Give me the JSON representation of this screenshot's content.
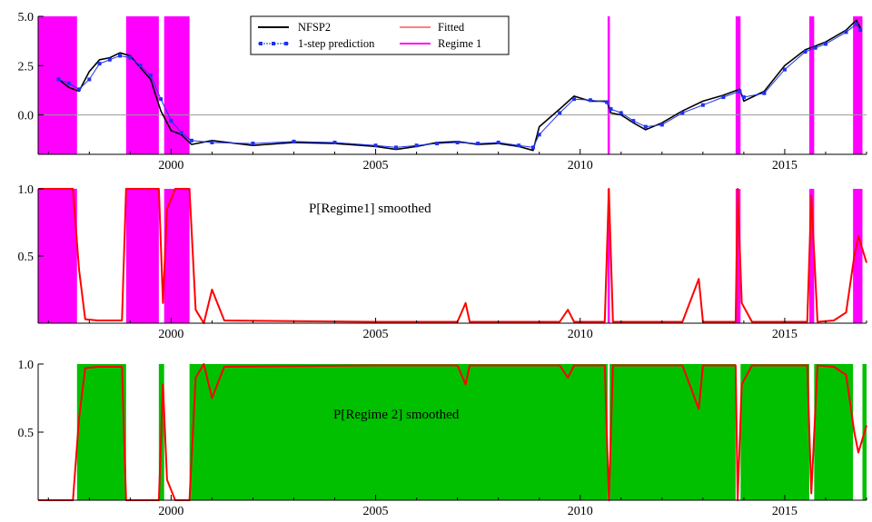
{
  "colors": {
    "actual": "#000000",
    "prediction": "#1e32f0",
    "fitted": "#ff0000",
    "regime1": "#ff00ff",
    "regime2": "#00c000",
    "axis": "#000000",
    "zero_line": "#999999"
  },
  "chart_data": [
    {
      "type": "line",
      "title": "",
      "xlabel": "",
      "ylabel": "",
      "xlim": [
        1996.75,
        2017.0
      ],
      "ylim": [
        -2.0,
        5.0
      ],
      "x_ticks": [
        2000,
        2005,
        2010,
        2015
      ],
      "x_tick_labels": [
        "2000",
        "2005",
        "2010",
        "2015"
      ],
      "y_ticks": [
        0,
        2.5,
        5.0
      ],
      "y_tick_labels": [
        "0.0",
        "2.5",
        "5.0"
      ],
      "zero_line": 0,
      "legend": {
        "placement": "top-center",
        "entries": [
          "NFSP2",
          "1-step prediction",
          "Fitted",
          "Regime 1"
        ]
      },
      "regime1_shading": [
        [
          1996.75,
          1997.7
        ],
        [
          1998.9,
          1999.7
        ],
        [
          1999.83,
          2000.45
        ],
        [
          2010.67,
          2010.72
        ],
        [
          2013.8,
          2013.92
        ],
        [
          2015.6,
          2015.72
        ],
        [
          2016.67,
          2016.9
        ]
      ],
      "series": [
        {
          "name": "NFSP2",
          "style": "line",
          "points": [
            [
              1997.25,
              1.8
            ],
            [
              1997.5,
              1.4
            ],
            [
              1997.75,
              1.2
            ],
            [
              1998.0,
              2.2
            ],
            [
              1998.25,
              2.8
            ],
            [
              1998.5,
              2.9
            ],
            [
              1998.75,
              3.15
            ],
            [
              1999.0,
              3.0
            ],
            [
              1999.25,
              2.4
            ],
            [
              1999.5,
              1.8
            ],
            [
              1999.75,
              0.2
            ],
            [
              2000.0,
              -0.8
            ],
            [
              2000.25,
              -1.0
            ],
            [
              2000.5,
              -1.5
            ],
            [
              2001.0,
              -1.3
            ],
            [
              2002.0,
              -1.55
            ],
            [
              2003.0,
              -1.4
            ],
            [
              2004.0,
              -1.45
            ],
            [
              2005.0,
              -1.6
            ],
            [
              2005.5,
              -1.75
            ],
            [
              2006.0,
              -1.6
            ],
            [
              2006.5,
              -1.4
            ],
            [
              2007.0,
              -1.35
            ],
            [
              2007.5,
              -1.5
            ],
            [
              2008.0,
              -1.45
            ],
            [
              2008.5,
              -1.6
            ],
            [
              2008.85,
              -1.8
            ],
            [
              2009.0,
              -0.6
            ],
            [
              2009.5,
              0.3
            ],
            [
              2009.85,
              0.95
            ],
            [
              2010.25,
              0.7
            ],
            [
              2010.65,
              0.7
            ],
            [
              2010.75,
              0.1
            ],
            [
              2011.0,
              0.0
            ],
            [
              2011.3,
              -0.4
            ],
            [
              2011.6,
              -0.75
            ],
            [
              2012.0,
              -0.4
            ],
            [
              2012.5,
              0.2
            ],
            [
              2013.0,
              0.7
            ],
            [
              2013.5,
              1.0
            ],
            [
              2013.9,
              1.3
            ],
            [
              2014.0,
              0.7
            ],
            [
              2014.5,
              1.2
            ],
            [
              2015.0,
              2.5
            ],
            [
              2015.5,
              3.3
            ],
            [
              2015.75,
              3.5
            ],
            [
              2016.0,
              3.7
            ],
            [
              2016.5,
              4.3
            ],
            [
              2016.75,
              4.8
            ],
            [
              2016.85,
              4.4
            ]
          ]
        },
        {
          "name": "1-step prediction",
          "style": "line-markers",
          "points": [
            [
              1997.25,
              1.8
            ],
            [
              1997.5,
              1.6
            ],
            [
              1997.75,
              1.3
            ],
            [
              1998.0,
              1.8
            ],
            [
              1998.25,
              2.6
            ],
            [
              1998.5,
              2.8
            ],
            [
              1998.75,
              3.0
            ],
            [
              1999.0,
              2.9
            ],
            [
              1999.25,
              2.5
            ],
            [
              1999.5,
              2.0
            ],
            [
              1999.75,
              0.8
            ],
            [
              2000.0,
              -0.3
            ],
            [
              2000.25,
              -0.9
            ],
            [
              2000.5,
              -1.3
            ],
            [
              2001.0,
              -1.4
            ],
            [
              2002.0,
              -1.45
            ],
            [
              2003.0,
              -1.35
            ],
            [
              2004.0,
              -1.4
            ],
            [
              2005.0,
              -1.55
            ],
            [
              2005.5,
              -1.65
            ],
            [
              2006.0,
              -1.55
            ],
            [
              2006.5,
              -1.45
            ],
            [
              2007.0,
              -1.4
            ],
            [
              2007.5,
              -1.45
            ],
            [
              2008.0,
              -1.4
            ],
            [
              2008.5,
              -1.55
            ],
            [
              2008.85,
              -1.65
            ],
            [
              2009.0,
              -1.0
            ],
            [
              2009.5,
              0.1
            ],
            [
              2009.85,
              0.8
            ],
            [
              2010.25,
              0.75
            ],
            [
              2010.65,
              0.65
            ],
            [
              2010.75,
              0.3
            ],
            [
              2011.0,
              0.1
            ],
            [
              2011.3,
              -0.3
            ],
            [
              2011.6,
              -0.6
            ],
            [
              2012.0,
              -0.5
            ],
            [
              2012.5,
              0.1
            ],
            [
              2013.0,
              0.5
            ],
            [
              2013.5,
              0.9
            ],
            [
              2013.9,
              1.2
            ],
            [
              2014.0,
              0.9
            ],
            [
              2014.5,
              1.1
            ],
            [
              2015.0,
              2.3
            ],
            [
              2015.5,
              3.2
            ],
            [
              2015.75,
              3.4
            ],
            [
              2016.0,
              3.6
            ],
            [
              2016.5,
              4.2
            ],
            [
              2016.75,
              4.6
            ],
            [
              2016.85,
              4.3
            ]
          ]
        }
      ]
    },
    {
      "type": "area",
      "title": "P[Regime1] smoothed",
      "xlabel": "",
      "ylabel": "",
      "xlim": [
        1996.75,
        2017.0
      ],
      "ylim": [
        0,
        1.0
      ],
      "x_ticks": [
        2000,
        2005,
        2010,
        2015
      ],
      "x_tick_labels": [
        "2000",
        "2005",
        "2010",
        "2015"
      ],
      "y_ticks": [
        0.5,
        1.0
      ],
      "y_tick_labels": [
        "0.5",
        "1.0"
      ],
      "shading": [
        [
          1996.75,
          1997.7
        ],
        [
          1998.9,
          1999.7
        ],
        [
          1999.83,
          2000.45
        ],
        [
          2010.67,
          2010.72
        ],
        [
          2013.8,
          2013.92
        ],
        [
          2015.6,
          2015.72
        ],
        [
          2016.67,
          2016.9
        ]
      ],
      "series": [
        {
          "name": "",
          "style": "line",
          "points": [
            [
              1996.75,
              1.0
            ],
            [
              1997.6,
              1.0
            ],
            [
              1997.75,
              0.4
            ],
            [
              1997.9,
              0.03
            ],
            [
              1998.2,
              0.02
            ],
            [
              1998.8,
              0.02
            ],
            [
              1998.9,
              1.0
            ],
            [
              1999.7,
              1.0
            ],
            [
              1999.8,
              0.15
            ],
            [
              1999.9,
              0.85
            ],
            [
              2000.1,
              1.0
            ],
            [
              2000.45,
              1.0
            ],
            [
              2000.6,
              0.1
            ],
            [
              2000.8,
              0.0
            ],
            [
              2001.0,
              0.25
            ],
            [
              2001.3,
              0.02
            ],
            [
              2005.0,
              0.01
            ],
            [
              2007.0,
              0.01
            ],
            [
              2007.2,
              0.15
            ],
            [
              2007.3,
              0.01
            ],
            [
              2009.5,
              0.01
            ],
            [
              2009.7,
              0.1
            ],
            [
              2009.85,
              0.01
            ],
            [
              2010.6,
              0.01
            ],
            [
              2010.7,
              1.0
            ],
            [
              2010.8,
              0.01
            ],
            [
              2012.5,
              0.01
            ],
            [
              2012.9,
              0.33
            ],
            [
              2013.0,
              0.01
            ],
            [
              2013.8,
              0.01
            ],
            [
              2013.85,
              1.0
            ],
            [
              2013.95,
              0.15
            ],
            [
              2014.2,
              0.01
            ],
            [
              2015.55,
              0.01
            ],
            [
              2015.65,
              0.95
            ],
            [
              2015.8,
              0.01
            ],
            [
              2016.2,
              0.02
            ],
            [
              2016.5,
              0.08
            ],
            [
              2016.7,
              0.5
            ],
            [
              2016.8,
              0.65
            ],
            [
              2017.0,
              0.45
            ]
          ]
        }
      ]
    },
    {
      "type": "area",
      "title": "P[Regime 2] smoothed",
      "xlabel": "",
      "ylabel": "",
      "xlim": [
        1996.75,
        2017.0
      ],
      "ylim": [
        0,
        1.0
      ],
      "x_ticks": [
        2000,
        2005,
        2010,
        2015
      ],
      "x_tick_labels": [
        "2000",
        "2005",
        "2010",
        "2015"
      ],
      "y_ticks": [
        0.5,
        1.0
      ],
      "y_tick_labels": [
        "0.5",
        "1.0"
      ],
      "shading": [
        [
          1997.7,
          1998.9
        ],
        [
          1999.7,
          1999.83
        ],
        [
          2000.45,
          2010.67
        ],
        [
          2010.72,
          2013.8
        ],
        [
          2013.92,
          2015.6
        ],
        [
          2015.72,
          2016.67
        ],
        [
          2016.9,
          2017.0
        ]
      ],
      "series": [
        {
          "name": "",
          "style": "line",
          "points": [
            [
              1996.75,
              0.0
            ],
            [
              1997.6,
              0.0
            ],
            [
              1997.75,
              0.6
            ],
            [
              1997.9,
              0.97
            ],
            [
              1998.2,
              0.98
            ],
            [
              1998.8,
              0.98
            ],
            [
              1998.9,
              0.0
            ],
            [
              1999.7,
              0.0
            ],
            [
              1999.8,
              0.85
            ],
            [
              1999.9,
              0.15
            ],
            [
              2000.1,
              0.0
            ],
            [
              2000.45,
              0.0
            ],
            [
              2000.6,
              0.9
            ],
            [
              2000.8,
              1.0
            ],
            [
              2001.0,
              0.75
            ],
            [
              2001.3,
              0.98
            ],
            [
              2005.0,
              0.99
            ],
            [
              2007.0,
              0.99
            ],
            [
              2007.2,
              0.85
            ],
            [
              2007.3,
              0.99
            ],
            [
              2009.5,
              0.99
            ],
            [
              2009.7,
              0.9
            ],
            [
              2009.85,
              0.99
            ],
            [
              2010.6,
              0.99
            ],
            [
              2010.7,
              0.0
            ],
            [
              2010.8,
              0.99
            ],
            [
              2012.5,
              0.99
            ],
            [
              2012.9,
              0.67
            ],
            [
              2013.0,
              0.99
            ],
            [
              2013.8,
              0.99
            ],
            [
              2013.85,
              0.0
            ],
            [
              2013.95,
              0.85
            ],
            [
              2014.2,
              0.99
            ],
            [
              2015.55,
              0.99
            ],
            [
              2015.65,
              0.05
            ],
            [
              2015.8,
              0.99
            ],
            [
              2016.2,
              0.98
            ],
            [
              2016.5,
              0.92
            ],
            [
              2016.7,
              0.5
            ],
            [
              2016.8,
              0.35
            ],
            [
              2017.0,
              0.55
            ]
          ]
        }
      ]
    }
  ]
}
